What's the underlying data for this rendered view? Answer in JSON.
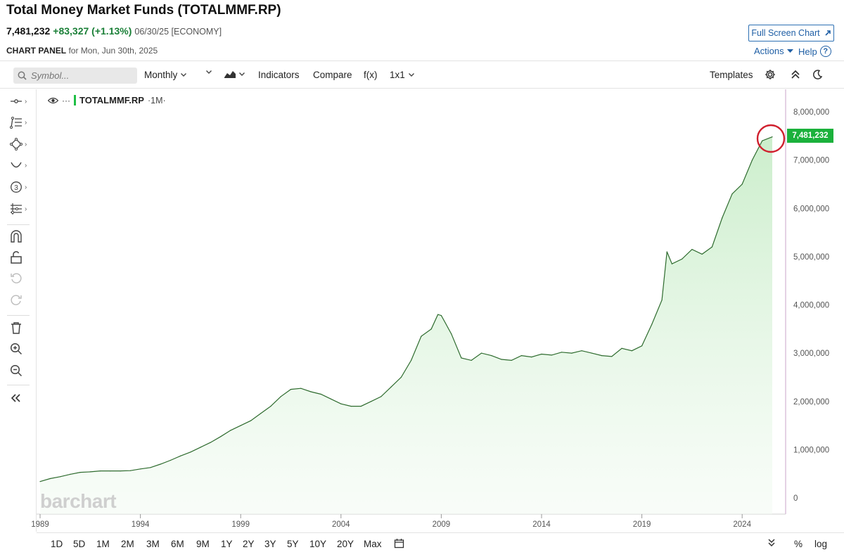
{
  "header": {
    "title": "Total Money Market Funds (TOTALMMF.RP)",
    "last": "7,481,232",
    "change": "+83,327 (+1.13%)",
    "date_exchange": "06/30/25 [ECONOMY]",
    "panel_caps": "CHART PANEL",
    "panel_rest": "for Mon, Jun 30th, 2025",
    "fullscreen_label": "Full Screen Chart",
    "actions_label": "Actions",
    "help_label": "Help"
  },
  "toolbar": {
    "search_placeholder": "Symbol...",
    "interval": "Monthly",
    "indicators": "Indicators",
    "compare": "Compare",
    "fx": "f(x)",
    "layout": "1x1",
    "templates": "Templates"
  },
  "legend": {
    "symbol": "TOTALMMF.RP",
    "period": "·1M·"
  },
  "watermark": "barchart",
  "last_price_tag": "7,481,232",
  "bottom": {
    "ranges": [
      "1D",
      "5D",
      "1M",
      "2M",
      "3M",
      "6M",
      "9M",
      "1Y",
      "2Y",
      "3Y",
      "5Y",
      "10Y",
      "20Y",
      "Max"
    ],
    "percent": "%",
    "log": "log"
  },
  "colors": {
    "line": "#2e6b2e",
    "fill": "#d8f2d8",
    "price_tag": "#1bb13c",
    "highlight_circle": "#d0202e",
    "link": "#1f5fa5"
  },
  "chart_data": {
    "type": "area",
    "title": "Total Money Market Funds (TOTALMMF.RP)",
    "interval": "Monthly",
    "x_tick_labels": [
      "1989",
      "1994",
      "1999",
      "2004",
      "2009",
      "2014",
      "2019",
      "2024"
    ],
    "y_tick_labels": [
      "8,000,000",
      "7,000,000",
      "6,000,000",
      "5,000,000",
      "4,000,000",
      "3,000,000",
      "2,000,000",
      "1,000,000",
      "0"
    ],
    "y_ticks": [
      8000000,
      7000000,
      6000000,
      5000000,
      4000000,
      3000000,
      2000000,
      1000000,
      0
    ],
    "ylim": [
      0,
      8000000
    ],
    "xlim": [
      1989.0,
      2025.75
    ],
    "grid": false,
    "last_value": 7481232,
    "series": [
      {
        "x": [
          1989.0,
          1989.5,
          1990.0,
          1990.5,
          1991.0,
          1991.5,
          1992.0,
          1992.5,
          1993.0,
          1993.5,
          1994.0,
          1994.5,
          1995.0,
          1995.5,
          1996.0,
          1996.5,
          1997.0,
          1997.5,
          1998.0,
          1998.5,
          1999.0,
          1999.5,
          2000.0,
          2000.5,
          2001.0,
          2001.5,
          2002.0,
          2002.5,
          2003.0,
          2003.5,
          2004.0,
          2004.5,
          2005.0,
          2005.5,
          2006.0,
          2006.5,
          2007.0,
          2007.5,
          2008.0,
          2008.5,
          2008.83,
          2009.0,
          2009.5,
          2010.0,
          2010.5,
          2011.0,
          2011.5,
          2012.0,
          2012.5,
          2013.0,
          2013.5,
          2014.0,
          2014.5,
          2015.0,
          2015.5,
          2016.0,
          2016.5,
          2017.0,
          2017.5,
          2018.0,
          2018.5,
          2019.0,
          2019.5,
          2020.0,
          2020.25,
          2020.5,
          2021.0,
          2021.5,
          2022.0,
          2022.5,
          2023.0,
          2023.5,
          2024.0,
          2024.5,
          2025.0,
          2025.5
        ],
        "y": [
          340000,
          400000,
          440000,
          490000,
          530000,
          540000,
          560000,
          560000,
          560000,
          565000,
          600000,
          630000,
          700000,
          780000,
          870000,
          950000,
          1050000,
          1150000,
          1270000,
          1400000,
          1500000,
          1600000,
          1750000,
          1900000,
          2100000,
          2250000,
          2270000,
          2200000,
          2150000,
          2050000,
          1950000,
          1900000,
          1900000,
          2000000,
          2100000,
          2300000,
          2500000,
          2850000,
          3350000,
          3500000,
          3800000,
          3780000,
          3400000,
          2900000,
          2850000,
          3000000,
          2950000,
          2870000,
          2850000,
          2950000,
          2920000,
          2980000,
          2960000,
          3020000,
          3000000,
          3050000,
          3000000,
          2950000,
          2930000,
          3100000,
          3050000,
          3150000,
          3600000,
          4100000,
          5100000,
          4850000,
          4950000,
          5150000,
          5050000,
          5200000,
          5800000,
          6300000,
          6500000,
          7000000,
          7400000,
          7481232
        ]
      }
    ]
  }
}
